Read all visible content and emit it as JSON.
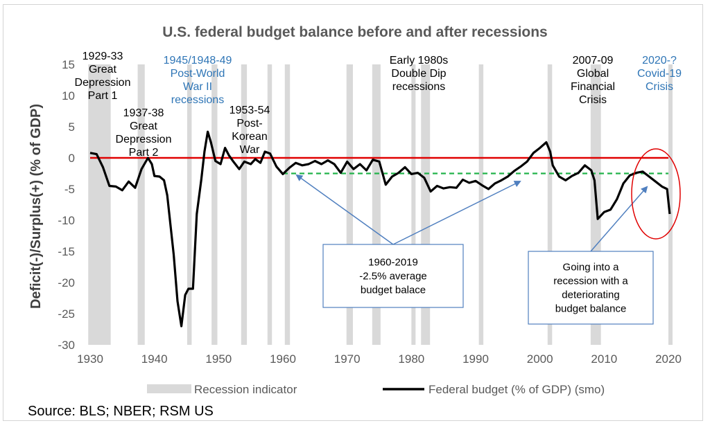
{
  "chart_data": {
    "type": "line",
    "title": "U.S. federal budget balance before and after recessions",
    "ylabel": "Deficit(-)/Surplus(+) (% of GDP)",
    "xlabel": "",
    "xlim": [
      1930,
      2020
    ],
    "ylim": [
      -30,
      15
    ],
    "x_ticks": [
      "1930",
      "1940",
      "1950",
      "1960",
      "1970",
      "1980",
      "1990",
      "2000",
      "2010",
      "2020"
    ],
    "y_ticks": [
      "15",
      "10",
      "5",
      "0",
      "-5",
      "-10",
      "-15",
      "-20",
      "-25",
      "-30"
    ],
    "recessions": [
      [
        1929.7,
        1933.2
      ],
      [
        1937.4,
        1938.5
      ],
      [
        1945.1,
        1945.8
      ],
      [
        1948.9,
        1949.8
      ],
      [
        1953.5,
        1954.4
      ],
      [
        1957.6,
        1958.3
      ],
      [
        1960.3,
        1961.1
      ],
      [
        1969.9,
        1970.9
      ],
      [
        1973.9,
        1975.2
      ],
      [
        1980.0,
        1980.5
      ],
      [
        1981.5,
        1982.9
      ],
      [
        1990.5,
        1991.2
      ],
      [
        2001.2,
        2001.9
      ],
      [
        2007.9,
        2009.5
      ],
      [
        2020.0,
        2020.4
      ]
    ],
    "series": [
      {
        "name": "Federal budget (% of GDP) (smo)",
        "color": "#000000",
        "points": [
          [
            1930,
            0.8
          ],
          [
            1931,
            0.6
          ],
          [
            1932,
            -1.5
          ],
          [
            1933,
            -4.5
          ],
          [
            1934,
            -4.6
          ],
          [
            1935,
            -5.2
          ],
          [
            1936,
            -3.8
          ],
          [
            1937,
            -4.8
          ],
          [
            1938,
            -1.8
          ],
          [
            1939,
            0
          ],
          [
            1939.6,
            -1.0
          ],
          [
            1940,
            -2.9
          ],
          [
            1940.8,
            -3.0
          ],
          [
            1941.5,
            -3.6
          ],
          [
            1942,
            -6
          ],
          [
            1943,
            -15.5
          ],
          [
            1943.6,
            -23
          ],
          [
            1944.2,
            -27
          ],
          [
            1944.8,
            -22
          ],
          [
            1945.3,
            -21
          ],
          [
            1946,
            -21
          ],
          [
            1946.6,
            -9
          ],
          [
            1947.3,
            -3.5
          ],
          [
            1947.8,
            1
          ],
          [
            1948.3,
            4.2
          ],
          [
            1948.8,
            2.5
          ],
          [
            1949.5,
            -0.5
          ],
          [
            1950.3,
            -1
          ],
          [
            1951,
            1.6
          ],
          [
            1951.6,
            0.4
          ],
          [
            1952.3,
            -0.6
          ],
          [
            1953.2,
            -1.8
          ],
          [
            1954,
            -0.6
          ],
          [
            1955,
            -1.0
          ],
          [
            1955.7,
            -0.2
          ],
          [
            1956.5,
            -0.8
          ],
          [
            1957.2,
            1.0
          ],
          [
            1958,
            0.7
          ],
          [
            1959,
            -1.4
          ],
          [
            1960,
            -2.6
          ],
          [
            1961,
            -1.6
          ],
          [
            1962,
            -0.8
          ],
          [
            1963,
            -1.2
          ],
          [
            1964,
            -1.0
          ],
          [
            1965,
            -0.5
          ],
          [
            1966,
            -1.0
          ],
          [
            1967,
            -0.4
          ],
          [
            1968,
            -1.0
          ],
          [
            1969,
            -2.4
          ],
          [
            1970,
            -0.6
          ],
          [
            1971,
            -1.8
          ],
          [
            1972,
            -1.0
          ],
          [
            1973,
            -2.0
          ],
          [
            1974,
            -0.3
          ],
          [
            1975,
            -0.6
          ],
          [
            1976,
            -4.3
          ],
          [
            1977,
            -3.0
          ],
          [
            1978,
            -2.4
          ],
          [
            1979,
            -1.5
          ],
          [
            1980,
            -2.6
          ],
          [
            1981,
            -2.4
          ],
          [
            1982,
            -3.2
          ],
          [
            1983,
            -5.4
          ],
          [
            1984,
            -4.5
          ],
          [
            1985,
            -4.9
          ],
          [
            1986,
            -4.7
          ],
          [
            1987,
            -4.8
          ],
          [
            1988,
            -3.5
          ],
          [
            1989,
            -4.0
          ],
          [
            1990,
            -3.7
          ],
          [
            1991,
            -4.4
          ],
          [
            1992,
            -5.0
          ],
          [
            1993,
            -4.1
          ],
          [
            1994,
            -3.6
          ],
          [
            1995,
            -3.0
          ],
          [
            1996,
            -2.1
          ],
          [
            1997,
            -1.4
          ],
          [
            1998,
            -0.6
          ],
          [
            1999,
            0.8
          ],
          [
            2000,
            1.6
          ],
          [
            2001,
            2.5
          ],
          [
            2001.6,
            1.0
          ],
          [
            2002,
            -1.2
          ],
          [
            2003,
            -3.0
          ],
          [
            2004,
            -3.6
          ],
          [
            2005,
            -2.9
          ],
          [
            2006,
            -2.4
          ],
          [
            2007,
            -1.2
          ],
          [
            2008,
            -2.0
          ],
          [
            2008.5,
            -3.6
          ],
          [
            2009,
            -9.8
          ],
          [
            2010,
            -8.7
          ],
          [
            2011,
            -8.3
          ],
          [
            2012,
            -6.6
          ],
          [
            2013,
            -4.1
          ],
          [
            2014,
            -2.8
          ],
          [
            2015,
            -2.4
          ],
          [
            2016,
            -2.2
          ],
          [
            2017,
            -3.0
          ],
          [
            2018,
            -3.8
          ],
          [
            2019,
            -4.6
          ],
          [
            2019.8,
            -5.0
          ],
          [
            2020.2,
            -9.0
          ]
        ]
      }
    ],
    "zero_line": {
      "value": 0,
      "color": "#e00000"
    },
    "average_line": {
      "value": -2.5,
      "from": 1960,
      "to": 2020,
      "color": "#22b34a"
    },
    "annotations": [
      {
        "lines": [
          "1929-33",
          "Great",
          "Depression",
          "Part 1"
        ],
        "color": "#000000"
      },
      {
        "lines": [
          "1937-38",
          "Great",
          "Depression",
          "Part 2"
        ],
        "color": "#000000"
      },
      {
        "lines": [
          "1945/1948-49",
          "Post-World",
          "War II",
          "recessions"
        ],
        "color": "#2e75b6"
      },
      {
        "lines": [
          "1953-54",
          "Post-",
          "Korean",
          "War"
        ],
        "color": "#000000"
      },
      {
        "lines": [
          "Early 1980s",
          "Double Dip",
          "recessions"
        ],
        "color": "#000000"
      },
      {
        "lines": [
          "2007-09",
          "Global",
          "Financial",
          "Crisis"
        ],
        "color": "#000000"
      },
      {
        "lines": [
          "2020-?",
          "Covid-19",
          "Crisis"
        ],
        "color": "#2e75b6"
      }
    ],
    "callouts": [
      {
        "lines": [
          "1960-2019",
          "-2.5% average",
          "budget balace"
        ]
      },
      {
        "lines": [
          "Going into a",
          "recession with a",
          "deteriorating",
          "budget balance"
        ]
      }
    ],
    "legend": [
      {
        "label": "Recession indicator",
        "color": "#d9d9d9"
      },
      {
        "label": "Federal budget (% of GDP) (smo)",
        "color": "#000000"
      }
    ],
    "legend_position": "bottom",
    "source": "Source: BLS; NBER; RSM US"
  }
}
